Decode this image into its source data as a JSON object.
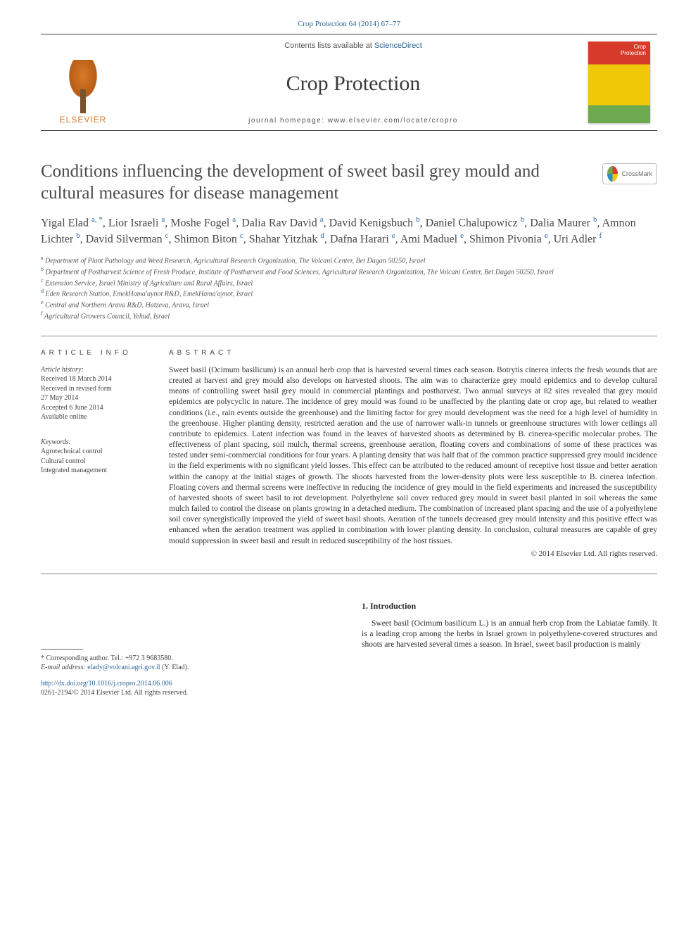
{
  "top_link": "Crop Protection 64 (2014) 67–77",
  "header": {
    "contents_prefix": "Contents lists available at ",
    "contents_link": "ScienceDirect",
    "journal": "Crop Protection",
    "homepage_prefix": "journal homepage: ",
    "homepage_url": "www.elsevier.com/locate/cropro",
    "publisher": "ELSEVIER",
    "cover_text_1": "Crop",
    "cover_text_2": "Protection"
  },
  "crossmark_label": "CrossMark",
  "title": "Conditions influencing the development of sweet basil grey mould and cultural measures for disease management",
  "authors_html": "Yigal Elad <sup>a, *</sup>, Lior Israeli <sup>a</sup>, Moshe Fogel <sup>a</sup>, Dalia Rav David <sup>a</sup>, David Kenigsbuch <sup>b</sup>, Daniel Chalupowicz <sup>b</sup>, Dalia Maurer <sup>b</sup>, Amnon Lichter <sup>b</sup>, David Silverman <sup>c</sup>, Shimon Biton <sup>c</sup>, Shahar Yitzhak <sup>d</sup>, Dafna Harari <sup>e</sup>, Ami Maduel <sup>e</sup>, Shimon Pivonia <sup>e</sup>, Uri Adler <sup>f</sup>",
  "affiliations": [
    {
      "sup": "a",
      "text": "Department of Plant Pathology and Weed Research, Agricultural Research Organization, The Volcani Center, Bet Dagan 50250, Israel"
    },
    {
      "sup": "b",
      "text": "Department of Postharvest Science of Fresh Produce, Institute of Postharvest and Food Sciences, Agricultural Research Organization, The Volcani Center, Bet Dagan 50250, Israel"
    },
    {
      "sup": "c",
      "text": "Extension Service, Israel Ministry of Agriculture and Rural Affairs, Israel"
    },
    {
      "sup": "d",
      "text": "Eden Research Station, EmekHama'aynot R&D, EmekHama'aynot, Israel"
    },
    {
      "sup": "e",
      "text": "Central and Northern Arava R&D, Hatzeva, Arava, Israel"
    },
    {
      "sup": "f",
      "text": "Agricultural Growers Council, Yehud, Israel"
    }
  ],
  "article_info": {
    "heading": "ARTICLE INFO",
    "history_label": "Article history:",
    "history": [
      "Received 18 March 2014",
      "Received in revised form",
      "27 May 2014",
      "Accepted 6 June 2014",
      "Available online"
    ],
    "keywords_label": "Keywords:",
    "keywords": [
      "Agrotechnical control",
      "Cultural control",
      "Integrated management"
    ]
  },
  "abstract": {
    "heading": "ABSTRACT",
    "text": "Sweet basil (Ocimum basilicum) is an annual herb crop that is harvested several times each season. Botrytis cinerea infects the fresh wounds that are created at harvest and grey mould also develops on harvested shoots. The aim was to characterize grey mould epidemics and to develop cultural means of controlling sweet basil grey mould in commercial plantings and postharvest. Two annual surveys at 82 sites revealed that grey mould epidemics are polycyclic in nature. The incidence of grey mould was found to be unaffected by the planting date or crop age, but related to weather conditions (i.e., rain events outside the greenhouse) and the limiting factor for grey mould development was the need for a high level of humidity in the greenhouse. Higher planting density, restricted aeration and the use of narrower walk-in tunnels or greenhouse structures with lower ceilings all contribute to epidemics. Latent infection was found in the leaves of harvested shoots as determined by B. cinerea-specific molecular probes. The effectiveness of plant spacing, soil mulch, thermal screens, greenhouse aeration, floating covers and combinations of some of these practices was tested under semi-commercial conditions for four years. A planting density that was half that of the common practice suppressed grey mould incidence in the field experiments with no significant yield losses. This effect can be attributed to the reduced amount of receptive host tissue and better aeration within the canopy at the initial stages of growth. The shoots harvested from the lower-density plots were less susceptible to B. cinerea infection. Floating covers and thermal screens were ineffective in reducing the incidence of grey mould in the field experiments and increased the susceptibility of harvested shoots of sweet basil to rot development. Polyethylene soil cover reduced grey mould in sweet basil planted in soil whereas the same mulch failed to control the disease on plants growing in a detached medium. The combination of increased plant spacing and the use of a polyethylene soil cover synergistically improved the yield of sweet basil shoots. Aeration of the tunnels decreased grey mould intensity and this positive effect was enhanced when the aeration treatment was applied in combination with lower planting density. In conclusion, cultural measures are capable of grey mould suppression in sweet basil and result in reduced susceptibility of the host tissues.",
    "copyright": "© 2014 Elsevier Ltd. All rights reserved."
  },
  "intro": {
    "heading": "1. Introduction",
    "para": "Sweet basil (Ocimum basilicum L.) is an annual herb crop from the Labiatae family. It is a leading crop among the herbs in Israel grown in polyethylene-covered structures and shoots are harvested several times a season. In Israel, sweet basil production is mainly"
  },
  "footnote": {
    "corr_label": "* Corresponding author. Tel.: +972 3 9683580.",
    "email_label": "E-mail address:",
    "email": "elady@volcani.agri.gov.il",
    "email_name": "(Y. Elad)."
  },
  "doi": {
    "url": "http://dx.doi.org/10.1016/j.cropro.2014.06.006",
    "issn_line": "0261-2194/© 2014 Elsevier Ltd. All rights reserved."
  }
}
